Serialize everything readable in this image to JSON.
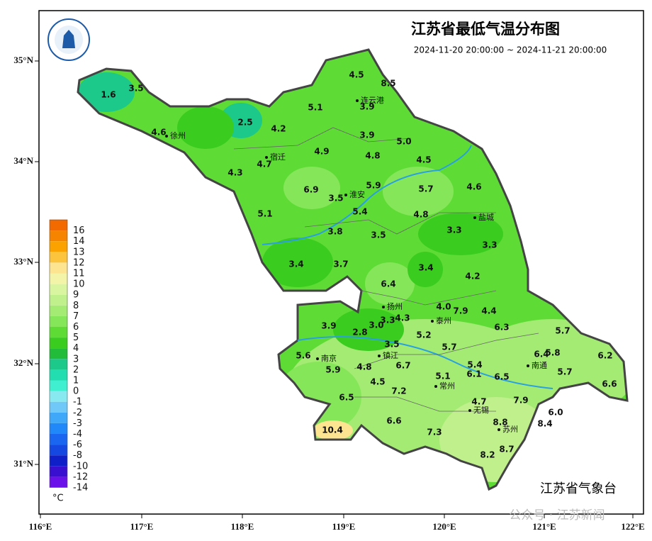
{
  "header": {
    "title": "江苏省最低气温分布图",
    "time_range": "2024-11-20 20:00:00 ~ 2024-11-21 20:00:00"
  },
  "axes": {
    "longitude": [
      "116°E",
      "117°E",
      "118°E",
      "119°E",
      "120°E",
      "121°E",
      "122°E"
    ],
    "latitude": [
      "35°N",
      "34°N",
      "33°N",
      "32°N",
      "31°N"
    ]
  },
  "legend": {
    "unit": "°C",
    "items": [
      {
        "label": "16",
        "color": "#f26a00"
      },
      {
        "label": "14",
        "color": "#f78400"
      },
      {
        "label": "13",
        "color": "#fba200"
      },
      {
        "label": "12",
        "color": "#fcc43d"
      },
      {
        "label": "11",
        "color": "#fce490"
      },
      {
        "label": "10",
        "color": "#f4f4a8"
      },
      {
        "label": "9",
        "color": "#daf5a0"
      },
      {
        "label": "8",
        "color": "#c0f08c"
      },
      {
        "label": "7",
        "color": "#a3eb73"
      },
      {
        "label": "6",
        "color": "#86e65a"
      },
      {
        "label": "5",
        "color": "#5edc35"
      },
      {
        "label": "4",
        "color": "#3acc1e"
      },
      {
        "label": "3",
        "color": "#22bb3a"
      },
      {
        "label": "2",
        "color": "#1cc98a"
      },
      {
        "label": "1",
        "color": "#22ddb0"
      },
      {
        "label": "0",
        "color": "#40eed0"
      },
      {
        "label": "-1",
        "color": "#88eaf0"
      },
      {
        "label": "-2",
        "color": "#70c8f8"
      },
      {
        "label": "-3",
        "color": "#40a8f8"
      },
      {
        "label": "-4",
        "color": "#2088f8"
      },
      {
        "label": "-6",
        "color": "#1a66f0"
      },
      {
        "label": "-8",
        "color": "#1448e0"
      },
      {
        "label": "-10",
        "color": "#1020c8"
      },
      {
        "label": "-12",
        "color": "#3a10d0"
      },
      {
        "label": "-14",
        "color": "#6a10e8"
      }
    ]
  },
  "cities": [
    "徐州",
    "宿迁",
    "连云港",
    "淮安",
    "盐城",
    "扬州",
    "泰州",
    "镇江",
    "南京",
    "南通",
    "常州",
    "无锡",
    "苏州"
  ],
  "stations": [
    "1.6",
    "3.5",
    "4.6",
    "2.5",
    "4.2",
    "4.3",
    "4.7",
    "4.9",
    "5.1",
    "4.5",
    "8.5",
    "3.9",
    "3.9",
    "4.8",
    "5.0",
    "4.5",
    "6.9",
    "3.5",
    "5.9",
    "5.4",
    "5.7",
    "4.6",
    "4.8",
    "5.1",
    "3.8",
    "3.5",
    "3.3",
    "3.3",
    "3.4",
    "3.7",
    "3.4",
    "4.2",
    "6.4",
    "4.0",
    "7.9",
    "4.4",
    "3.9",
    "2.8",
    "3.0",
    "3.3",
    "4.3",
    "6.3",
    "5.7",
    "5.2",
    "3.5",
    "5.7",
    "5.6",
    "4.8",
    "6.7",
    "5.9",
    "5.4",
    "6.4",
    "5.8",
    "6.2",
    "5.7",
    "6.1",
    "5.1",
    "6.5",
    "4.5",
    "7.2",
    "6.6",
    "6.5",
    "4.7",
    "7.9",
    "6.0",
    "8.8",
    "8.4",
    "10.4",
    "6.6",
    "7.3",
    "8.7",
    "8.2"
  ],
  "footer": {
    "agency": "江苏省气象台",
    "watermark": "公众号 · 江苏新闻"
  }
}
